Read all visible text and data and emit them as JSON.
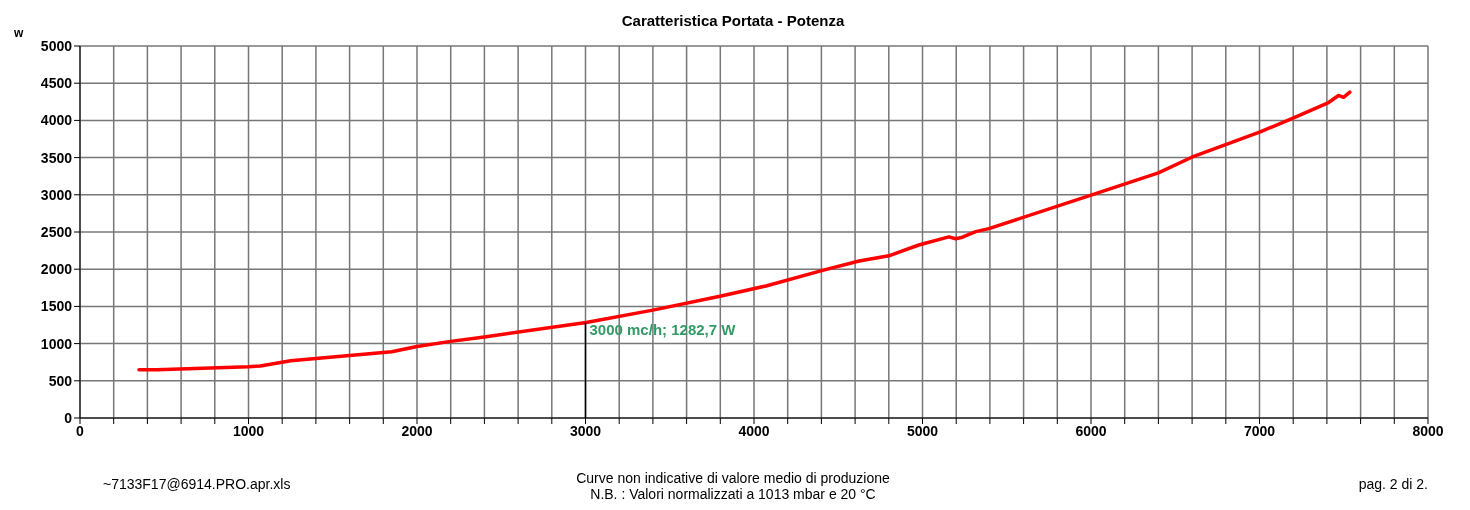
{
  "chart_data": {
    "type": "line",
    "title": "Caratteristica Portata - Potenza",
    "ylabel": "w",
    "x": [
      350,
      456,
      1000,
      1070,
      1250,
      1400,
      1850,
      2000,
      2200,
      2400,
      3004,
      3400,
      3805,
      4071,
      4407,
      4624,
      4800,
      4978,
      5156,
      5197,
      5237,
      5316,
      5394,
      5987,
      6400,
      6598,
      7004,
      7192,
      7410,
      7469,
      7499,
      7536
    ],
    "series": [
      {
        "color": "#ff0000",
        "values": [
          650,
          650,
          690,
          700,
          770,
          800,
          890,
          960,
          1030,
          1090,
          1283,
          1450,
          1640,
          1775,
          1985,
          2110,
          2180,
          2325,
          2435,
          2410,
          2430,
          2505,
          2545,
          2985,
          3295,
          3505,
          3845,
          4025,
          4240,
          4335,
          4310,
          4380
        ]
      }
    ],
    "xlim": [
      0,
      8000
    ],
    "xticks": [
      0,
      {
        "value": 200,
        "label": null
      },
      {
        "value": 400,
        "label": null
      },
      {
        "value": 600,
        "label": null
      },
      {
        "value": 800,
        "label": null
      },
      1000,
      {
        "value": 1200,
        "label": null
      },
      {
        "value": 1400,
        "label": null
      },
      {
        "value": 1600,
        "label": null
      },
      {
        "value": 1800,
        "label": null
      },
      2000,
      {
        "value": 2200,
        "label": null
      },
      {
        "value": 2400,
        "label": null
      },
      {
        "value": 2600,
        "label": null
      },
      {
        "value": 2800,
        "label": null
      },
      3000,
      {
        "value": 3200,
        "label": null
      },
      {
        "value": 3400,
        "label": null
      },
      {
        "value": 3600,
        "label": null
      },
      {
        "value": 3800,
        "label": null
      },
      4000,
      {
        "value": 4200,
        "label": null
      },
      {
        "value": 4400,
        "label": null
      },
      {
        "value": 4600,
        "label": null
      },
      {
        "value": 4800,
        "label": null
      },
      5000,
      {
        "value": 5200,
        "label": null
      },
      {
        "value": 5400,
        "label": null
      },
      {
        "value": 5600,
        "label": null
      },
      {
        "value": 5800,
        "label": null
      },
      6000,
      {
        "value": 6200,
        "label": null
      },
      {
        "value": 6400,
        "label": null
      },
      {
        "value": 6600,
        "label": null
      },
      {
        "value": 6800,
        "label": null
      },
      7000,
      {
        "value": 7200,
        "label": null
      },
      {
        "value": 7400,
        "label": null
      },
      {
        "value": 7600,
        "label": null
      },
      {
        "value": 7800,
        "label": null
      },
      8000
    ],
    "ylim": [
      0,
      5000
    ],
    "yticks": [
      0,
      500,
      1000,
      1500,
      2000,
      2500,
      3000,
      3500,
      4000,
      4500,
      5000
    ],
    "grid": true,
    "line_style": "solid",
    "marker": "none",
    "annotations": [
      {
        "text": "3000 mc/h; 1282,7 W",
        "x": 3000,
        "y": 1282.7
      },
      "~7133F17@6914.PRO.apr.xls",
      "Curve non indicative di valore medio di produzione",
      "N.B. : Valori normalizzati a 1013 mbar e 20 °C",
      "pag. 2 di 2."
    ]
  }
}
